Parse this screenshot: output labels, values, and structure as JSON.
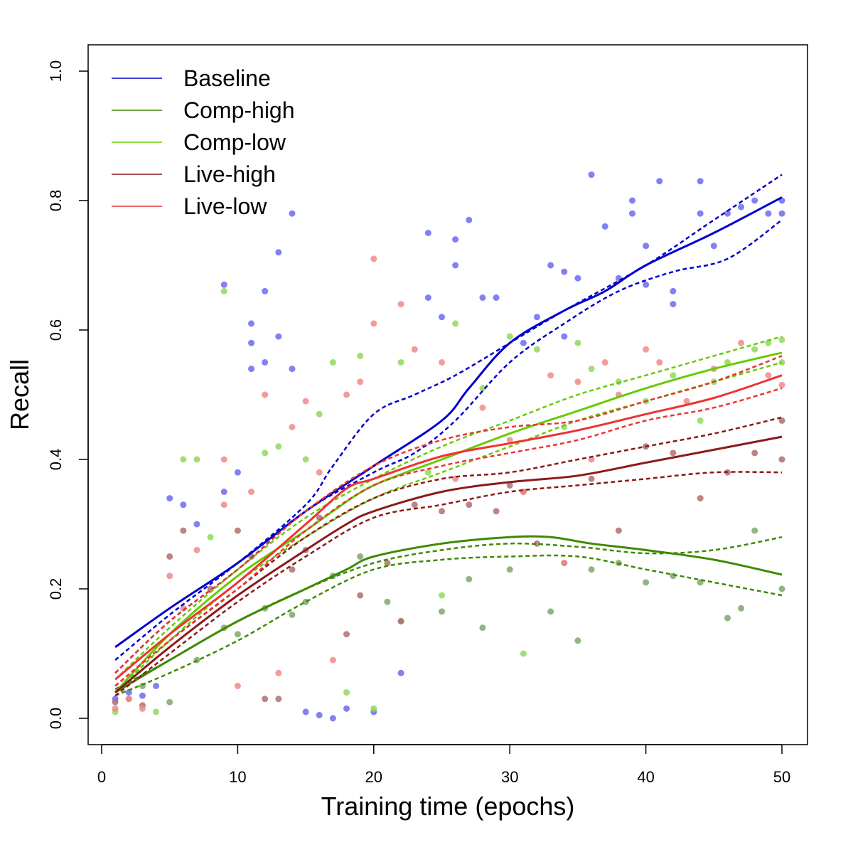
{
  "chart_data": {
    "type": "scatter",
    "title": "",
    "xlabel": "Training time (epochs)",
    "ylabel": "Recall",
    "xlim": [
      0,
      50
    ],
    "ylim": [
      0.0,
      1.0
    ],
    "xticks": [
      0,
      10,
      20,
      30,
      40,
      50
    ],
    "yticks": [
      0.0,
      0.2,
      0.4,
      0.6,
      0.8,
      1.0
    ],
    "xtick_labels": [
      "0",
      "10",
      "20",
      "30",
      "40",
      "50"
    ],
    "ytick_labels": [
      "0.0",
      "0.2",
      "0.4",
      "0.6",
      "0.8",
      "1.0"
    ],
    "grid": false,
    "legend_position": "top-left",
    "series": [
      {
        "name": "Baseline",
        "color": "#0000cc",
        "point_color": "#6b6bf0",
        "fit": {
          "x": [
            1,
            5,
            10,
            15,
            20,
            25,
            27,
            30,
            34,
            37,
            40,
            45,
            50
          ],
          "y": [
            0.11,
            0.17,
            0.24,
            0.32,
            0.39,
            0.46,
            0.51,
            0.58,
            0.63,
            0.66,
            0.7,
            0.75,
            0.805
          ]
        },
        "ci_upper": {
          "x": [
            1,
            5,
            10,
            15,
            17,
            20,
            23,
            26,
            30,
            34,
            40,
            45,
            50
          ],
          "y": [
            0.09,
            0.16,
            0.24,
            0.33,
            0.39,
            0.47,
            0.5,
            0.53,
            0.58,
            0.63,
            0.7,
            0.77,
            0.84
          ]
        },
        "ci_lower": {
          "x": [
            1,
            5,
            10,
            15,
            20,
            23,
            26,
            30,
            34,
            38,
            42,
            46,
            50
          ],
          "y": [
            0.07,
            0.15,
            0.23,
            0.32,
            0.38,
            0.41,
            0.46,
            0.55,
            0.61,
            0.66,
            0.69,
            0.71,
            0.77
          ]
        },
        "points": [
          [
            5,
            0.34
          ],
          [
            6,
            0.33
          ],
          [
            7,
            0.3
          ],
          [
            9,
            0.67
          ],
          [
            9,
            0.35
          ],
          [
            10,
            0.38
          ],
          [
            11,
            0.61
          ],
          [
            11,
            0.58
          ],
          [
            11,
            0.54
          ],
          [
            12,
            0.66
          ],
          [
            12,
            0.55
          ],
          [
            13,
            0.72
          ],
          [
            13,
            0.59
          ],
          [
            14,
            0.78
          ],
          [
            14,
            0.54
          ],
          [
            15,
            0.01
          ],
          [
            16,
            0.005
          ],
          [
            17,
            0.0
          ],
          [
            18,
            0.015
          ],
          [
            20,
            0.01
          ],
          [
            22,
            0.07
          ],
          [
            24,
            0.75
          ],
          [
            24,
            0.65
          ],
          [
            25,
            0.62
          ],
          [
            26,
            0.74
          ],
          [
            26,
            0.7
          ],
          [
            27,
            0.77
          ],
          [
            28,
            0.65
          ],
          [
            29,
            0.65
          ],
          [
            31,
            0.58
          ],
          [
            32,
            0.62
          ],
          [
            33,
            0.7
          ],
          [
            34,
            0.69
          ],
          [
            34,
            0.59
          ],
          [
            35,
            0.68
          ],
          [
            36,
            0.84
          ],
          [
            37,
            0.76
          ],
          [
            38,
            0.68
          ],
          [
            39,
            0.8
          ],
          [
            39,
            0.78
          ],
          [
            40,
            0.73
          ],
          [
            40,
            0.67
          ],
          [
            41,
            0.83
          ],
          [
            42,
            0.66
          ],
          [
            42,
            0.64
          ],
          [
            44,
            0.83
          ],
          [
            44,
            0.78
          ],
          [
            45,
            0.73
          ],
          [
            46,
            0.78
          ],
          [
            47,
            0.79
          ],
          [
            48,
            0.8
          ],
          [
            49,
            0.78
          ],
          [
            50,
            0.78
          ],
          [
            50,
            0.8
          ],
          [
            1,
            0.03
          ],
          [
            2,
            0.04
          ],
          [
            3,
            0.035
          ],
          [
            4,
            0.05
          ]
        ]
      },
      {
        "name": "Comp-high",
        "color": "#3d8a00",
        "point_color": "#7fa86a",
        "fit": {
          "x": [
            1,
            5,
            10,
            15,
            18,
            20,
            25,
            30,
            33,
            36,
            40,
            45,
            50
          ],
          "y": [
            0.04,
            0.09,
            0.15,
            0.2,
            0.23,
            0.25,
            0.27,
            0.28,
            0.28,
            0.27,
            0.26,
            0.245,
            0.222
          ]
        },
        "ci_upper": {
          "x": [
            1,
            5,
            10,
            15,
            20,
            25,
            30,
            35,
            40,
            45,
            50
          ],
          "y": [
            0.045,
            0.09,
            0.15,
            0.2,
            0.24,
            0.26,
            0.27,
            0.265,
            0.255,
            0.26,
            0.28
          ]
        },
        "ci_lower": {
          "x": [
            1,
            5,
            10,
            15,
            20,
            25,
            30,
            35,
            40,
            45,
            50
          ],
          "y": [
            0.035,
            0.07,
            0.12,
            0.18,
            0.23,
            0.245,
            0.25,
            0.25,
            0.23,
            0.21,
            0.19
          ]
        },
        "points": [
          [
            3,
            0.05
          ],
          [
            5,
            0.025
          ],
          [
            7,
            0.09
          ],
          [
            9,
            0.14
          ],
          [
            10,
            0.13
          ],
          [
            12,
            0.17
          ],
          [
            14,
            0.16
          ],
          [
            15,
            0.18
          ],
          [
            17,
            0.22
          ],
          [
            19,
            0.25
          ],
          [
            21,
            0.18
          ],
          [
            22,
            0.15
          ],
          [
            25,
            0.165
          ],
          [
            27,
            0.215
          ],
          [
            28,
            0.14
          ],
          [
            30,
            0.23
          ],
          [
            33,
            0.165
          ],
          [
            35,
            0.12
          ],
          [
            36,
            0.23
          ],
          [
            38,
            0.24
          ],
          [
            40,
            0.21
          ],
          [
            42,
            0.22
          ],
          [
            44,
            0.21
          ],
          [
            46,
            0.155
          ],
          [
            47,
            0.17
          ],
          [
            48,
            0.29
          ],
          [
            50,
            0.2
          ]
        ]
      },
      {
        "name": "Comp-low",
        "color": "#66cc00",
        "point_color": "#8fd85e",
        "fit": {
          "x": [
            1,
            5,
            10,
            15,
            17,
            20,
            25,
            30,
            35,
            40,
            45,
            50
          ],
          "y": [
            0.04,
            0.13,
            0.22,
            0.29,
            0.32,
            0.36,
            0.4,
            0.44,
            0.475,
            0.51,
            0.54,
            0.565
          ]
        },
        "ci_upper": {
          "x": [
            1,
            5,
            10,
            15,
            20,
            25,
            30,
            35,
            40,
            45,
            50
          ],
          "y": [
            0.06,
            0.14,
            0.23,
            0.31,
            0.37,
            0.42,
            0.46,
            0.5,
            0.53,
            0.56,
            0.59
          ]
        },
        "ci_lower": {
          "x": [
            1,
            5,
            10,
            15,
            20,
            25,
            30,
            35,
            40,
            45,
            50
          ],
          "y": [
            0.04,
            0.12,
            0.21,
            0.28,
            0.34,
            0.38,
            0.42,
            0.46,
            0.49,
            0.52,
            0.55
          ]
        },
        "points": [
          [
            1,
            0.01
          ],
          [
            4,
            0.01
          ],
          [
            6,
            0.4
          ],
          [
            7,
            0.4
          ],
          [
            8,
            0.28
          ],
          [
            9,
            0.66
          ],
          [
            12,
            0.41
          ],
          [
            13,
            0.42
          ],
          [
            15,
            0.4
          ],
          [
            16,
            0.47
          ],
          [
            17,
            0.55
          ],
          [
            18,
            0.04
          ],
          [
            19,
            0.56
          ],
          [
            20,
            0.015
          ],
          [
            22,
            0.55
          ],
          [
            24,
            0.38
          ],
          [
            25,
            0.19
          ],
          [
            26,
            0.61
          ],
          [
            28,
            0.51
          ],
          [
            30,
            0.59
          ],
          [
            31,
            0.1
          ],
          [
            32,
            0.57
          ],
          [
            34,
            0.45
          ],
          [
            35,
            0.58
          ],
          [
            36,
            0.54
          ],
          [
            38,
            0.52
          ],
          [
            40,
            0.49
          ],
          [
            42,
            0.53
          ],
          [
            44,
            0.46
          ],
          [
            45,
            0.52
          ],
          [
            46,
            0.55
          ],
          [
            48,
            0.57
          ],
          [
            49,
            0.58
          ],
          [
            50,
            0.585
          ],
          [
            50,
            0.55
          ]
        ]
      },
      {
        "name": "Live-high",
        "color": "#8b1a1a",
        "point_color": "#b07070",
        "fit": {
          "x": [
            1,
            5,
            10,
            15,
            18,
            20,
            25,
            30,
            35,
            40,
            45,
            50
          ],
          "y": [
            0.04,
            0.11,
            0.19,
            0.26,
            0.3,
            0.32,
            0.35,
            0.365,
            0.375,
            0.395,
            0.415,
            0.435
          ]
        },
        "ci_upper": {
          "x": [
            1,
            5,
            10,
            15,
            20,
            25,
            30,
            35,
            40,
            45,
            50
          ],
          "y": [
            0.05,
            0.12,
            0.2,
            0.28,
            0.34,
            0.37,
            0.38,
            0.4,
            0.42,
            0.44,
            0.465
          ]
        },
        "ci_lower": {
          "x": [
            1,
            5,
            10,
            15,
            20,
            25,
            30,
            35,
            40,
            45,
            50
          ],
          "y": [
            0.035,
            0.1,
            0.18,
            0.25,
            0.31,
            0.33,
            0.35,
            0.36,
            0.37,
            0.38,
            0.38
          ]
        },
        "points": [
          [
            1,
            0.025
          ],
          [
            2,
            0.03
          ],
          [
            3,
            0.02
          ],
          [
            5,
            0.25
          ],
          [
            6,
            0.29
          ],
          [
            8,
            0.2
          ],
          [
            10,
            0.29
          ],
          [
            11,
            0.25
          ],
          [
            12,
            0.03
          ],
          [
            13,
            0.03
          ],
          [
            14,
            0.23
          ],
          [
            15,
            0.26
          ],
          [
            16,
            0.31
          ],
          [
            18,
            0.13
          ],
          [
            19,
            0.19
          ],
          [
            21,
            0.24
          ],
          [
            22,
            0.15
          ],
          [
            23,
            0.33
          ],
          [
            25,
            0.32
          ],
          [
            27,
            0.33
          ],
          [
            29,
            0.32
          ],
          [
            30,
            0.36
          ],
          [
            31,
            0.35
          ],
          [
            32,
            0.27
          ],
          [
            34,
            0.24
          ],
          [
            36,
            0.37
          ],
          [
            38,
            0.29
          ],
          [
            40,
            0.42
          ],
          [
            42,
            0.41
          ],
          [
            44,
            0.34
          ],
          [
            46,
            0.38
          ],
          [
            48,
            0.41
          ],
          [
            50,
            0.4
          ],
          [
            50,
            0.46
          ]
        ]
      },
      {
        "name": "Live-low",
        "color": "#ee3333",
        "point_color": "#f08a8a",
        "fit": {
          "x": [
            1,
            5,
            10,
            15,
            18,
            20,
            25,
            30,
            35,
            40,
            45,
            50
          ],
          "y": [
            0.06,
            0.13,
            0.21,
            0.3,
            0.355,
            0.37,
            0.405,
            0.425,
            0.445,
            0.47,
            0.495,
            0.53
          ]
        },
        "ci_upper": {
          "x": [
            1,
            5,
            10,
            15,
            20,
            25,
            30,
            35,
            40,
            45,
            50
          ],
          "y": [
            0.07,
            0.15,
            0.23,
            0.32,
            0.39,
            0.43,
            0.45,
            0.46,
            0.49,
            0.52,
            0.56
          ]
        },
        "ci_lower": {
          "x": [
            1,
            5,
            10,
            15,
            20,
            25,
            30,
            35,
            40,
            45,
            50
          ],
          "y": [
            0.05,
            0.12,
            0.2,
            0.29,
            0.36,
            0.39,
            0.41,
            0.43,
            0.46,
            0.48,
            0.51
          ]
        },
        "points": [
          [
            1,
            0.015
          ],
          [
            2,
            0.03
          ],
          [
            3,
            0.015
          ],
          [
            5,
            0.22
          ],
          [
            6,
            0.17
          ],
          [
            7,
            0.26
          ],
          [
            9,
            0.4
          ],
          [
            9,
            0.33
          ],
          [
            10,
            0.05
          ],
          [
            11,
            0.35
          ],
          [
            12,
            0.5
          ],
          [
            13,
            0.07
          ],
          [
            14,
            0.45
          ],
          [
            15,
            0.49
          ],
          [
            16,
            0.38
          ],
          [
            17,
            0.09
          ],
          [
            18,
            0.5
          ],
          [
            19,
            0.52
          ],
          [
            20,
            0.71
          ],
          [
            20,
            0.61
          ],
          [
            22,
            0.64
          ],
          [
            23,
            0.57
          ],
          [
            25,
            0.55
          ],
          [
            26,
            0.37
          ],
          [
            28,
            0.48
          ],
          [
            30,
            0.43
          ],
          [
            31,
            0.35
          ],
          [
            33,
            0.53
          ],
          [
            34,
            0.24
          ],
          [
            35,
            0.52
          ],
          [
            36,
            0.4
          ],
          [
            37,
            0.55
          ],
          [
            38,
            0.5
          ],
          [
            40,
            0.57
          ],
          [
            41,
            0.55
          ],
          [
            43,
            0.49
          ],
          [
            45,
            0.54
          ],
          [
            47,
            0.58
          ],
          [
            49,
            0.53
          ],
          [
            50,
            0.515
          ]
        ]
      }
    ]
  }
}
